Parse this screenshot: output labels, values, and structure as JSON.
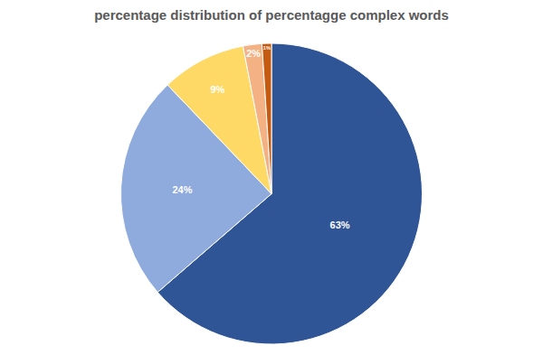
{
  "chart_data": {
    "type": "pie",
    "title": "percentage distribution of percentagge complex words",
    "values": [
      63,
      24,
      9,
      2,
      1
    ],
    "value_labels": [
      "63%",
      "24%",
      "9%",
      "2%",
      "1%"
    ],
    "data_labels": true,
    "colors": [
      "#2f5597",
      "#8faadc",
      "#ffd966",
      "#f4b183",
      "#c55a11"
    ]
  }
}
